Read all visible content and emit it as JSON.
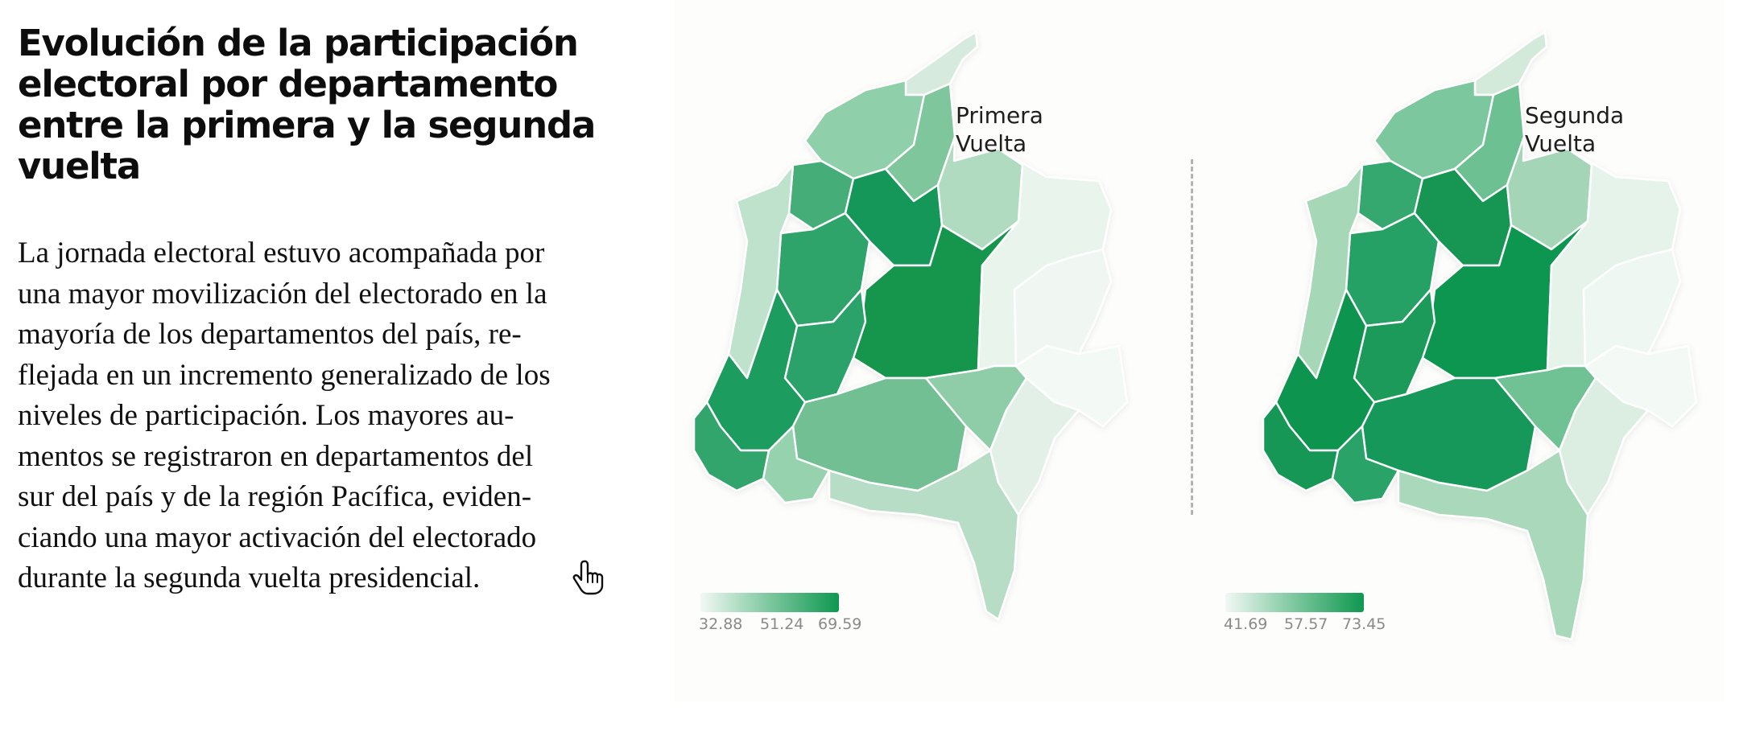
{
  "heading": "Evolución de la participación electoral por departamento entre la primera y la segunda vuelta",
  "paragraph_lines": [
    "La jornada electoral estuvo acompañada por",
    "una mayor movilización del electorado en la",
    "mayoría de los departamentos del país, re-",
    "flejada en un incremento generalizado de los",
    "niveles de participación. Los mayores au-",
    "mentos se registraron en departamentos del",
    "sur del país y de la región Pacífica, eviden-",
    "ciando una mayor activación del electorado",
    "durante la segunda vuelta presidencial."
  ],
  "cursor_icon": "hand-pointer-icon",
  "maps": {
    "first": {
      "label_line1": "Primera",
      "label_line2": "Vuelta",
      "legend_ticks": [
        "32.88",
        "51.24",
        "69.59"
      ]
    },
    "second": {
      "label_line1": "Segunda",
      "label_line2": "Vuelta",
      "legend_ticks": [
        "41.69",
        "57.57",
        "73.45"
      ]
    }
  },
  "colors": {
    "scale_low": "#f2f8f4",
    "scale_mid": "#7cc79e",
    "scale_high": "#0e9850",
    "divider": "#b4b4b4"
  }
}
